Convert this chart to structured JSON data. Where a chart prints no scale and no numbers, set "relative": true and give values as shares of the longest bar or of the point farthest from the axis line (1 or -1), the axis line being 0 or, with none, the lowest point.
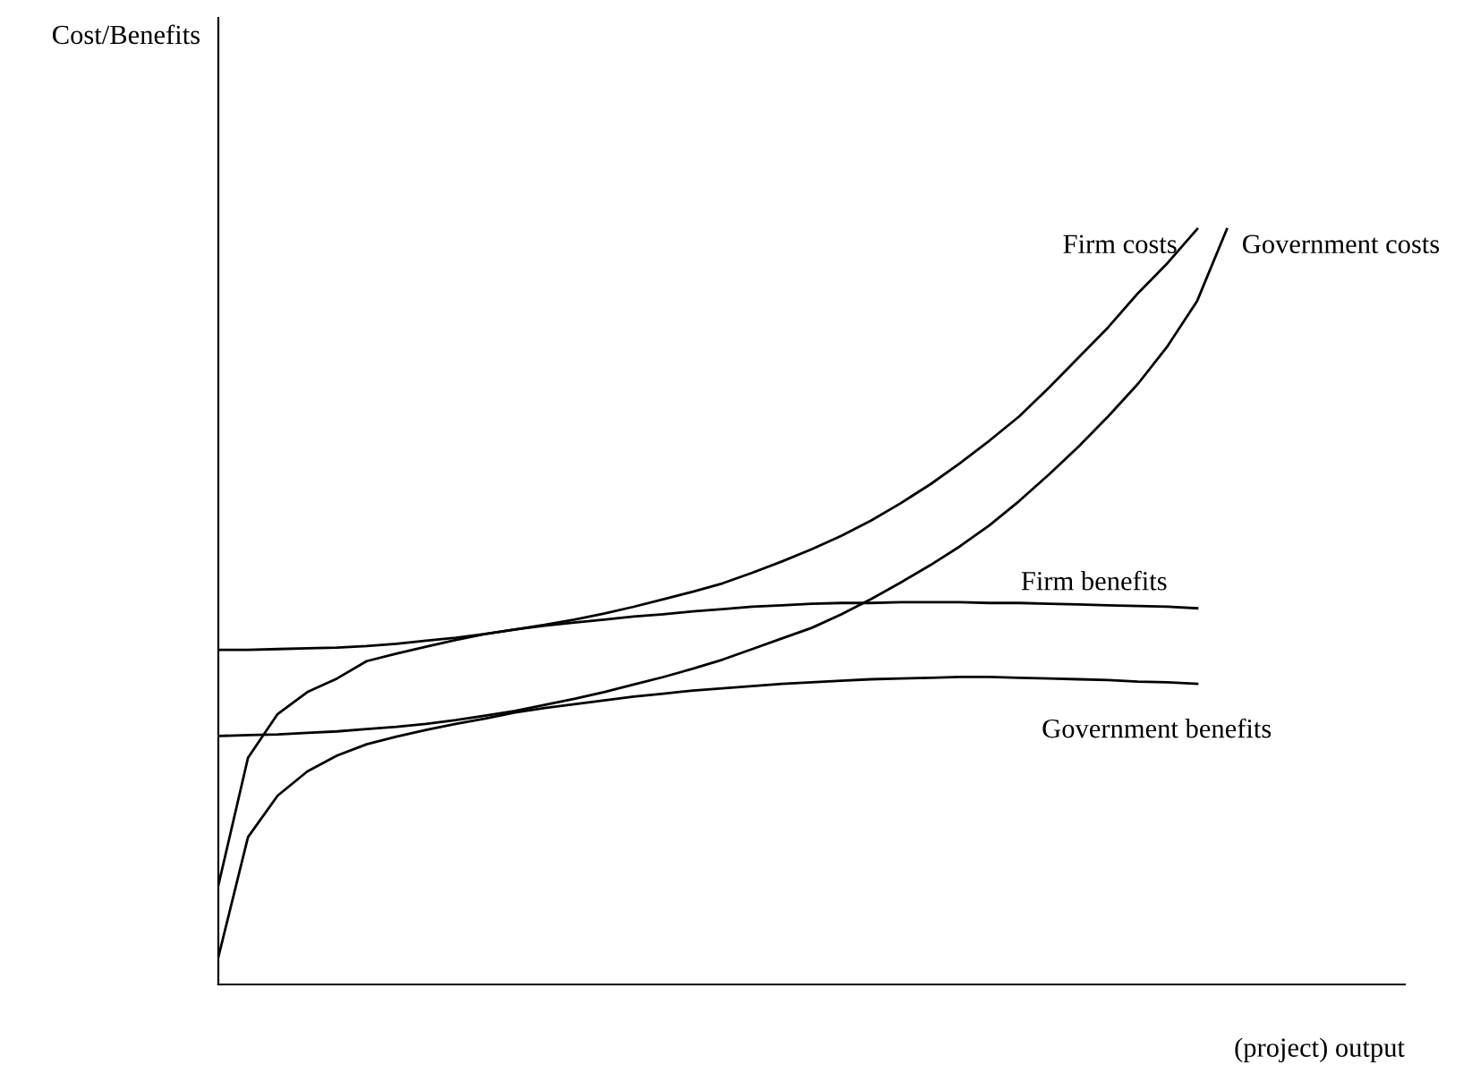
{
  "chart_data": {
    "type": "line",
    "relative": true,
    "xlabel": "(project) output",
    "annotations": [
      "Cost/Benefits"
    ],
    "legend": false,
    "line_style": "solid",
    "categories": [
      null,
      null,
      null,
      null,
      null,
      null,
      null,
      null,
      null,
      null,
      null,
      null,
      null,
      null,
      null,
      null,
      null,
      null,
      null,
      null,
      null,
      null,
      null,
      null,
      null,
      null,
      null,
      null,
      null,
      null,
      null,
      null,
      null,
      null,
      null,
      null,
      null,
      null,
      null,
      null,
      null
    ],
    "series": [
      {
        "name": "Firm costs",
        "color": "#000000",
        "values": [
          0.443,
          0.443,
          0.444,
          0.445,
          0.446,
          0.448,
          0.451,
          0.455,
          0.459,
          0.464,
          0.47,
          0.476,
          0.483,
          0.491,
          0.5,
          0.51,
          0.52,
          0.531,
          0.545,
          0.56,
          0.576,
          0.594,
          0.614,
          0.637,
          0.662,
          0.69,
          0.72,
          0.752,
          0.79,
          0.83,
          0.87,
          0.915,
          0.955,
          1.0,
          null,
          null,
          null,
          null,
          null,
          null,
          null
        ]
      },
      {
        "name": "Government costs",
        "color": "#000000",
        "values": [
          0.329,
          0.33,
          0.331,
          0.333,
          0.335,
          0.338,
          0.341,
          0.345,
          0.35,
          0.356,
          0.362,
          0.37,
          0.378,
          0.387,
          0.397,
          0.407,
          0.418,
          0.43,
          0.444,
          0.458,
          0.472,
          0.49,
          0.51,
          0.532,
          0.555,
          0.58,
          0.608,
          0.64,
          0.675,
          0.712,
          0.752,
          0.795,
          0.845,
          0.905,
          1.0,
          null,
          null,
          null,
          null,
          null,
          null
        ]
      },
      {
        "name": "Firm benefits",
        "color": "#000000",
        "values": [
          0.131,
          0.3,
          0.358,
          0.387,
          0.405,
          0.428,
          0.438,
          0.447,
          0.456,
          0.464,
          0.47,
          0.475,
          0.479,
          0.483,
          0.487,
          0.49,
          0.494,
          0.497,
          0.5,
          0.502,
          0.504,
          0.505,
          0.505,
          0.506,
          0.506,
          0.506,
          0.505,
          0.505,
          0.504,
          0.503,
          0.502,
          0.501,
          0.5,
          0.498,
          null,
          null,
          null,
          null,
          null,
          null,
          null
        ]
      },
      {
        "name": "Government benefits",
        "color": "#000000",
        "values": [
          0.036,
          0.195,
          0.25,
          0.282,
          0.303,
          0.318,
          0.328,
          0.337,
          0.345,
          0.352,
          0.36,
          0.366,
          0.371,
          0.376,
          0.381,
          0.385,
          0.389,
          0.392,
          0.395,
          0.398,
          0.4,
          0.402,
          0.404,
          0.405,
          0.406,
          0.407,
          0.407,
          0.406,
          0.405,
          0.404,
          0.403,
          0.401,
          0.4,
          0.398,
          null,
          null,
          null,
          null,
          null,
          null,
          null
        ]
      }
    ]
  }
}
